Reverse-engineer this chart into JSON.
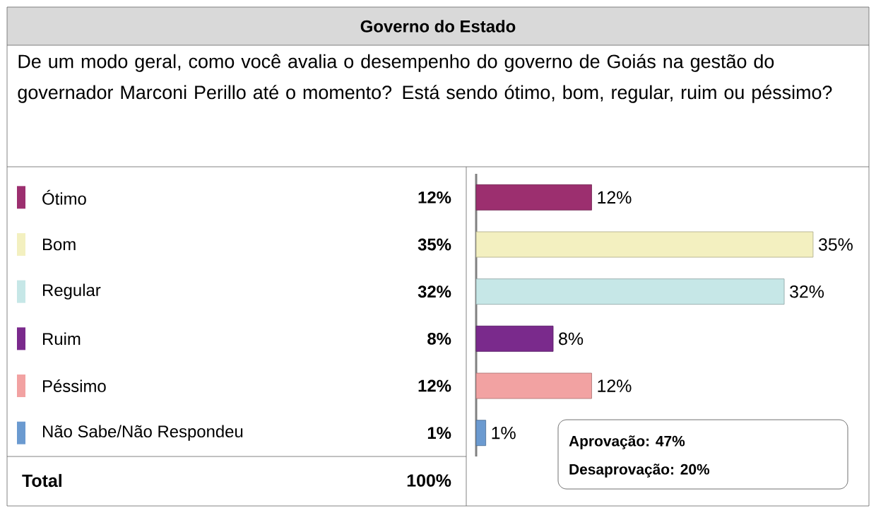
{
  "chart_data": {
    "type": "bar",
    "orientation": "horizontal",
    "title": "Governo do Estado",
    "subtitle": "De um modo geral, como você avalia o desempenho do governo de Goiás na gestão do governador Marconi Perillo até o momento? Está sendo ótimo, bom, regular, ruim ou péssimo?",
    "categories": [
      "Ótimo",
      "Bom",
      "Regular",
      "Ruim",
      "Péssimo",
      "Não Sabe/Não Respondeu"
    ],
    "values": [
      12,
      35,
      32,
      8,
      12,
      1
    ],
    "value_labels": [
      "12%",
      "35%",
      "32%",
      "8%",
      "12%",
      "1%"
    ],
    "colors": [
      "#9c2f6f",
      "#f3f0c0",
      "#c6e7e7",
      "#7a2a8c",
      "#f2a2a2",
      "#6b9ad0"
    ],
    "annotations": [
      "Total",
      "100%",
      "Aprovação: 47%",
      "Desaprovação: 20%"
    ]
  }
}
